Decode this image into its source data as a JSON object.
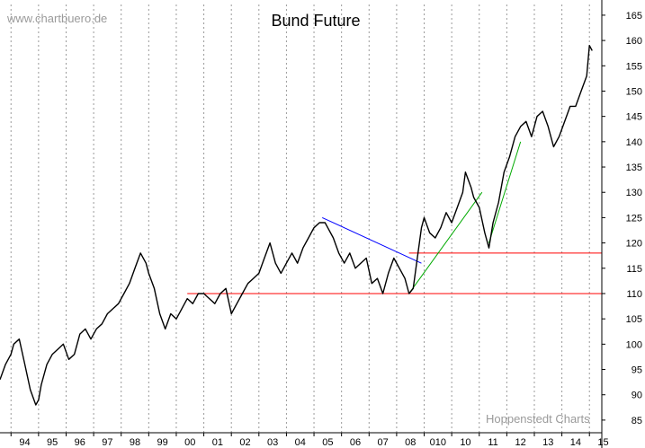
{
  "header": {
    "watermark": "www.chartbuero.de",
    "title": "Bund Future"
  },
  "footer": {
    "credit": "Hoppenstedt Charts"
  },
  "chart_data": {
    "type": "line",
    "title": "Bund Future",
    "xlabel": "",
    "ylabel": "",
    "grid": "vertical dotted",
    "xlim": [
      1993.6,
      2015.45
    ],
    "ylim": [
      82.5,
      168
    ],
    "y_ticks": [
      85,
      90,
      95,
      100,
      105,
      110,
      115,
      120,
      125,
      130,
      135,
      140,
      145,
      150,
      155,
      160,
      165
    ],
    "x_ticks": [
      {
        "label": "94",
        "x": 1994
      },
      {
        "label": "95",
        "x": 1995
      },
      {
        "label": "96",
        "x": 1996
      },
      {
        "label": "97",
        "x": 1997
      },
      {
        "label": "98",
        "x": 1998
      },
      {
        "label": "99",
        "x": 1999
      },
      {
        "label": "00",
        "x": 2000
      },
      {
        "label": "01",
        "x": 2001
      },
      {
        "label": "02",
        "x": 2002
      },
      {
        "label": "03",
        "x": 2003
      },
      {
        "label": "04",
        "x": 2004
      },
      {
        "label": "05",
        "x": 2005
      },
      {
        "label": "06",
        "x": 2006
      },
      {
        "label": "07",
        "x": 2007
      },
      {
        "label": "08",
        "x": 2008
      },
      {
        "label": "010",
        "x": 2009
      },
      {
        "label": "10",
        "x": 2010
      },
      {
        "label": "11",
        "x": 2011
      },
      {
        "label": "12",
        "x": 2012
      },
      {
        "label": "13",
        "x": 2013
      },
      {
        "label": "14",
        "x": 2014
      },
      {
        "label": "15",
        "x": 2015
      }
    ],
    "series": [
      {
        "color": "#000000",
        "x": [
          1993.6,
          1993.8,
          1994.0,
          1994.1,
          1994.3,
          1994.5,
          1994.7,
          1994.9,
          1995.0,
          1995.1,
          1995.3,
          1995.5,
          1995.7,
          1995.9,
          1996.1,
          1996.3,
          1996.5,
          1996.7,
          1996.9,
          1997.1,
          1997.3,
          1997.5,
          1997.7,
          1997.9,
          1998.1,
          1998.3,
          1998.5,
          1998.7,
          1998.9,
          1999.0,
          1999.2,
          1999.4,
          1999.6,
          1999.8,
          2000.0,
          2000.2,
          2000.4,
          2000.6,
          2000.8,
          2001.0,
          2001.2,
          2001.4,
          2001.6,
          2001.8,
          2002.0,
          2002.2,
          2002.4,
          2002.6,
          2002.8,
          2003.0,
          2003.2,
          2003.4,
          2003.6,
          2003.8,
          2004.0,
          2004.2,
          2004.4,
          2004.6,
          2004.8,
          2005.0,
          2005.2,
          2005.4,
          2005.5,
          2005.7,
          2005.9,
          2006.1,
          2006.3,
          2006.5,
          2006.7,
          2006.9,
          2007.1,
          2007.3,
          2007.5,
          2007.7,
          2007.9,
          2008.1,
          2008.3,
          2008.45,
          2008.6,
          2008.75,
          2008.9,
          2009.0,
          2009.2,
          2009.4,
          2009.6,
          2009.8,
          2010.0,
          2010.2,
          2010.4,
          2010.5,
          2010.7,
          2010.8,
          2011.0,
          2011.2,
          2011.35,
          2011.5,
          2011.7,
          2011.9,
          2012.1,
          2012.3,
          2012.5,
          2012.7,
          2012.9,
          2013.1,
          2013.3,
          2013.5,
          2013.7,
          2013.9,
          2014.1,
          2014.3,
          2014.5,
          2014.7,
          2014.9,
          2015.0,
          2015.1
        ],
        "values": [
          93,
          96,
          98,
          100,
          101,
          96,
          91,
          88,
          89,
          92,
          96,
          98,
          99,
          100,
          97,
          98,
          102,
          103,
          101,
          103,
          104,
          106,
          107,
          108,
          110,
          112,
          115,
          118,
          116,
          114,
          111,
          106,
          103,
          106,
          105,
          107,
          109,
          108,
          110,
          110,
          109,
          108,
          110,
          111,
          106,
          108,
          110,
          112,
          113,
          114,
          117,
          120,
          116,
          114,
          116,
          118,
          116,
          119,
          121,
          123,
          124,
          124,
          123,
          121,
          118,
          116,
          118,
          115,
          116,
          117,
          112,
          113,
          110,
          114,
          117,
          115,
          113,
          110,
          111,
          117,
          123,
          125,
          122,
          121,
          123,
          126,
          124,
          127,
          130,
          134,
          131,
          129,
          127,
          122,
          119,
          124,
          128,
          134,
          137,
          141,
          143,
          144,
          141,
          145,
          146,
          143,
          139,
          141,
          144,
          147,
          147,
          150,
          153,
          159,
          158
        ]
      }
    ],
    "lines": [
      {
        "name": "",
        "color": "#ff0000",
        "x": [
          2000.4,
          2015.45
        ],
        "values": [
          110,
          110
        ]
      },
      {
        "name": "",
        "color": "#ff0000",
        "x": [
          2008.45,
          2015.45
        ],
        "values": [
          118,
          118
        ]
      },
      {
        "name": "",
        "color": "#0000ff",
        "x": [
          2005.3,
          2008.9
        ],
        "values": [
          125,
          116
        ]
      },
      {
        "name": "",
        "color": "#00aa00",
        "x": [
          2008.45,
          2011.1
        ],
        "values": [
          110,
          130
        ]
      },
      {
        "name": "",
        "color": "#00aa00",
        "x": [
          2011.35,
          2012.5
        ],
        "values": [
          120,
          140
        ]
      }
    ]
  }
}
